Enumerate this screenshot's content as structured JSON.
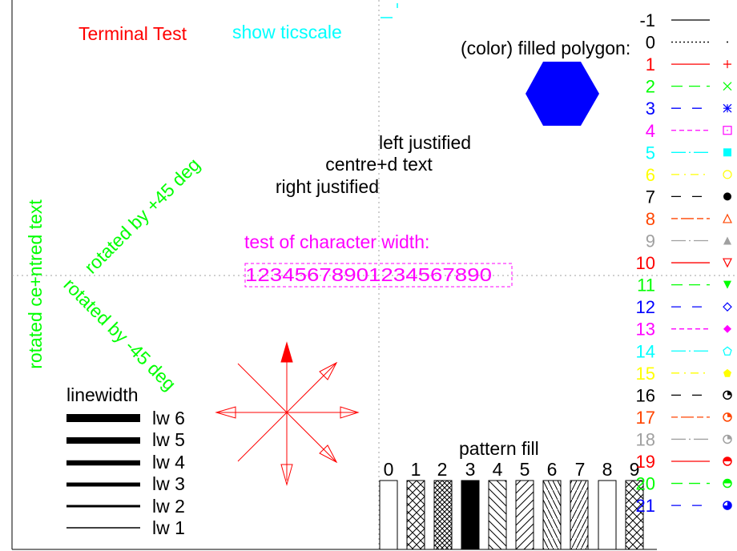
{
  "header": {
    "title": "Terminal Test",
    "ticscale": "show ticscale",
    "title_color": "#ff0000",
    "ticscale_color": "#00ffff"
  },
  "polygon": {
    "label": "(color) filled polygon:",
    "color": "#0000ff"
  },
  "justify": {
    "left": "left justified",
    "centre": "centre+d text",
    "right": "right justified"
  },
  "charwidth": {
    "label": "test of character width:",
    "digits": "12345678901234567890",
    "color": "#ff00ff"
  },
  "rotated": {
    "centred": "rotated ce+ntred text",
    "plus45": "rotated by +45 deg",
    "minus45": "rotated by -45 deg",
    "color": "#00ff00"
  },
  "linewidth": {
    "title": "linewidth",
    "items": [
      "lw 6",
      "lw 5",
      "lw 4",
      "lw 3",
      "lw 2",
      "lw 1"
    ]
  },
  "arrows": {
    "color": "#ff0000"
  },
  "pattern": {
    "title": "pattern fill",
    "labels": [
      "0",
      "1",
      "2",
      "3",
      "4",
      "5",
      "6",
      "7",
      "8",
      "9"
    ]
  },
  "linetypes": [
    {
      "label": "-1",
      "color": "#000000",
      "symbol": "none",
      "dash": "solid"
    },
    {
      "label": "0",
      "color": "#000000",
      "symbol": "dot",
      "dash": "dotted"
    },
    {
      "label": "1",
      "color": "#ff0000",
      "symbol": "plus-icon",
      "dash": "solid"
    },
    {
      "label": "2",
      "color": "#00ff00",
      "symbol": "cross-icon",
      "dash": "long"
    },
    {
      "label": "3",
      "color": "#0000ff",
      "symbol": "asterisk-icon",
      "dash": "medium"
    },
    {
      "label": "4",
      "color": "#ff00ff",
      "symbol": "open-square-icon",
      "dash": "short"
    },
    {
      "label": "5",
      "color": "#00ffff",
      "symbol": "filled-square-icon",
      "dash": "dashdot"
    },
    {
      "label": "6",
      "color": "#ffff00",
      "symbol": "open-circle-icon",
      "dash": "dashdot2"
    },
    {
      "label": "7",
      "color": "#000000",
      "symbol": "filled-circle-icon",
      "dash": "medium"
    },
    {
      "label": "8",
      "color": "#ff4500",
      "symbol": "open-triangle-icon",
      "dash": "dashlong"
    },
    {
      "label": "9",
      "color": "#a0a0a0",
      "symbol": "filled-triangle-icon",
      "dash": "dashdot"
    },
    {
      "label": "10",
      "color": "#ff0000",
      "symbol": "open-down-triangle-icon",
      "dash": "solid"
    },
    {
      "label": "11",
      "color": "#00ff00",
      "symbol": "filled-down-triangle-icon",
      "dash": "long"
    },
    {
      "label": "12",
      "color": "#0000ff",
      "symbol": "open-diamond-icon",
      "dash": "medium"
    },
    {
      "label": "13",
      "color": "#ff00ff",
      "symbol": "filled-diamond-icon",
      "dash": "short"
    },
    {
      "label": "14",
      "color": "#00ffff",
      "symbol": "open-pentagon-icon",
      "dash": "dashdot"
    },
    {
      "label": "15",
      "color": "#ffff00",
      "symbol": "filled-pentagon-icon",
      "dash": "dashdot2"
    },
    {
      "label": "16",
      "color": "#000000",
      "symbol": "circle-quarter-icon",
      "dash": "medium"
    },
    {
      "label": "17",
      "color": "#ff4500",
      "symbol": "circle-quarter-icon",
      "dash": "dashlong"
    },
    {
      "label": "18",
      "color": "#a0a0a0",
      "symbol": "circle-quarter-icon",
      "dash": "dashdot"
    },
    {
      "label": "19",
      "color": "#ff0000",
      "symbol": "circle-half-icon",
      "dash": "solid"
    },
    {
      "label": "20",
      "color": "#00ff00",
      "symbol": "circle-half-icon",
      "dash": "long"
    },
    {
      "label": "21",
      "color": "#0000ff",
      "symbol": "circle-threequarter-icon",
      "dash": "medium"
    }
  ]
}
